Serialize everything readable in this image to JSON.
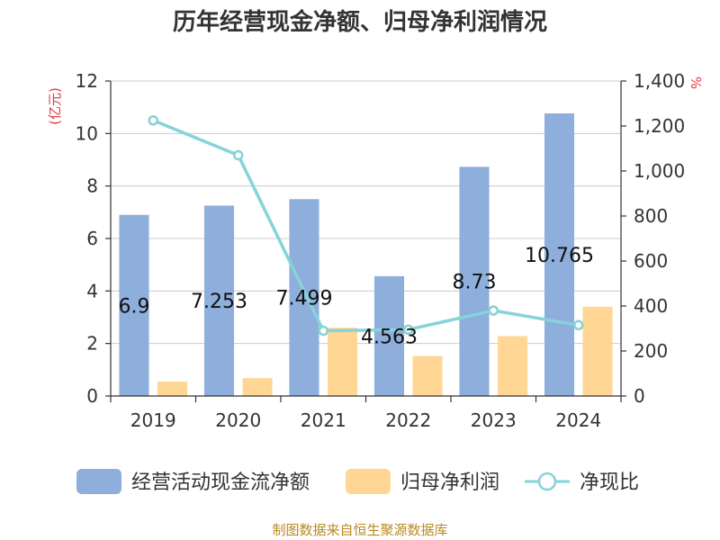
{
  "chart_data": {
    "type": "bar",
    "title": "历年经营现金净额、归母净利润情况",
    "categories": [
      "2019",
      "2020",
      "2021",
      "2022",
      "2023",
      "2024"
    ],
    "series": [
      {
        "name": "经营活动现金流净额",
        "type": "bar",
        "axis": "left",
        "color": "#8eaedb",
        "values": [
          6.9,
          7.253,
          7.499,
          4.563,
          8.73,
          10.765
        ],
        "labels": [
          "6.9",
          "7.253",
          "7.499",
          "4.563",
          "8.73",
          "10.765"
        ]
      },
      {
        "name": "归母净利润",
        "type": "bar",
        "axis": "left",
        "color": "#ffd694",
        "values": [
          0.55,
          0.68,
          2.6,
          1.52,
          2.28,
          3.4
        ]
      },
      {
        "name": "净现比",
        "type": "line",
        "axis": "right",
        "color": "#86d3d8",
        "values": [
          1225,
          1070,
          290,
          295,
          380,
          315
        ]
      }
    ],
    "y_left": {
      "unit": "(亿元)",
      "min": 0,
      "max": 12,
      "ticks": [
        "0",
        "2",
        "4",
        "6",
        "8",
        "10",
        "12"
      ]
    },
    "y_right": {
      "unit": "%",
      "min": 0,
      "max": 1400,
      "ticks": [
        "0",
        "200",
        "400",
        "600",
        "800",
        "1,000",
        "1,200",
        "1,400"
      ]
    },
    "grid": true,
    "legend_position": "bottom"
  },
  "source": "制图数据来自恒生聚源数据库"
}
